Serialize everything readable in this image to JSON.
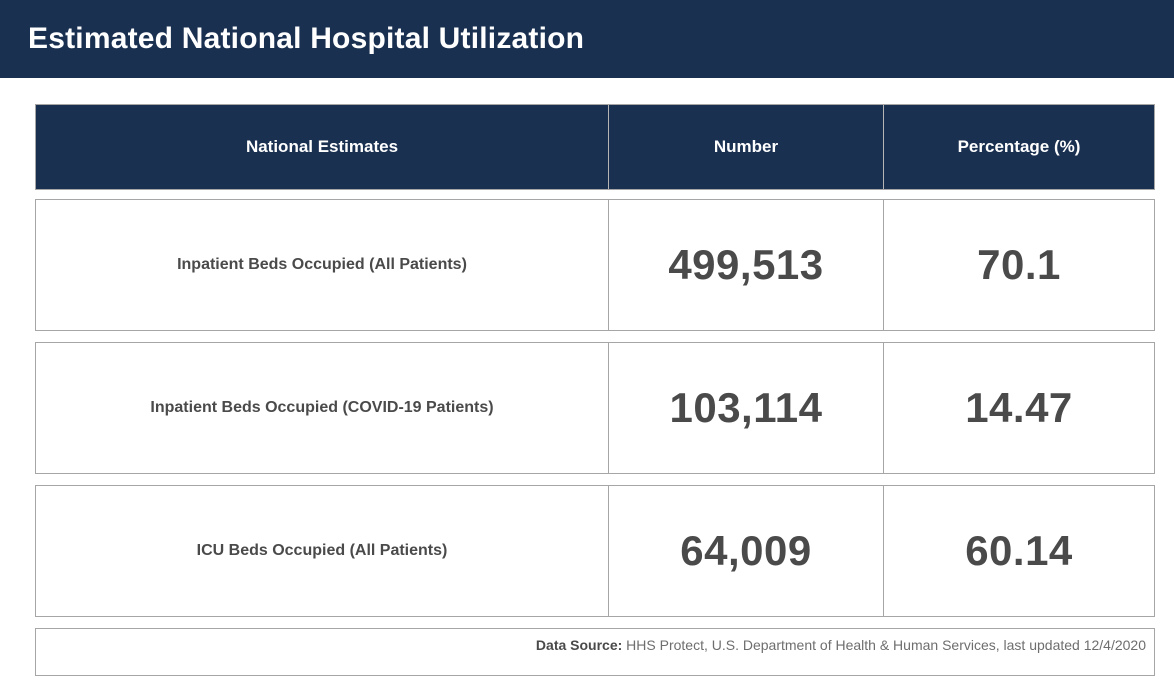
{
  "page": {
    "title": "Estimated National Hospital Utilization"
  },
  "table": {
    "headers": [
      "National Estimates",
      "Number",
      "Percentage (%)"
    ],
    "rows": [
      {
        "label": "Inpatient Beds Occupied (All Patients)",
        "number": "499,513",
        "percentage": "70.1"
      },
      {
        "label": "Inpatient Beds Occupied (COVID-19 Patients)",
        "number": "103,114",
        "percentage": "14.47"
      },
      {
        "label": "ICU Beds Occupied (All Patients)",
        "number": "64,009",
        "percentage": "60.14"
      }
    ]
  },
  "footer": {
    "label": "Data Source:",
    "text": " HHS Protect, U.S. Department of Health & Human Services, last updated 12/4/2020"
  },
  "colors": {
    "navy": "#1a3051",
    "border_gray": "#a6a6a6",
    "text_dark": "#4a4a4a",
    "text_gray": "#6e6e6e"
  },
  "chart_data": {
    "type": "table",
    "title": "Estimated National Hospital Utilization",
    "columns": [
      "National Estimates",
      "Number",
      "Percentage (%)"
    ],
    "categories": [
      "Inpatient Beds Occupied (All Patients)",
      "Inpatient Beds Occupied (COVID-19 Patients)",
      "ICU Beds Occupied (All Patients)"
    ],
    "series": [
      {
        "name": "Number",
        "values": [
          499513,
          103114,
          64009
        ]
      },
      {
        "name": "Percentage (%)",
        "values": [
          70.1,
          14.47,
          60.14
        ]
      }
    ],
    "source_note": "Data Source: HHS Protect, U.S. Department of Health & Human Services, last updated 12/4/2020"
  }
}
